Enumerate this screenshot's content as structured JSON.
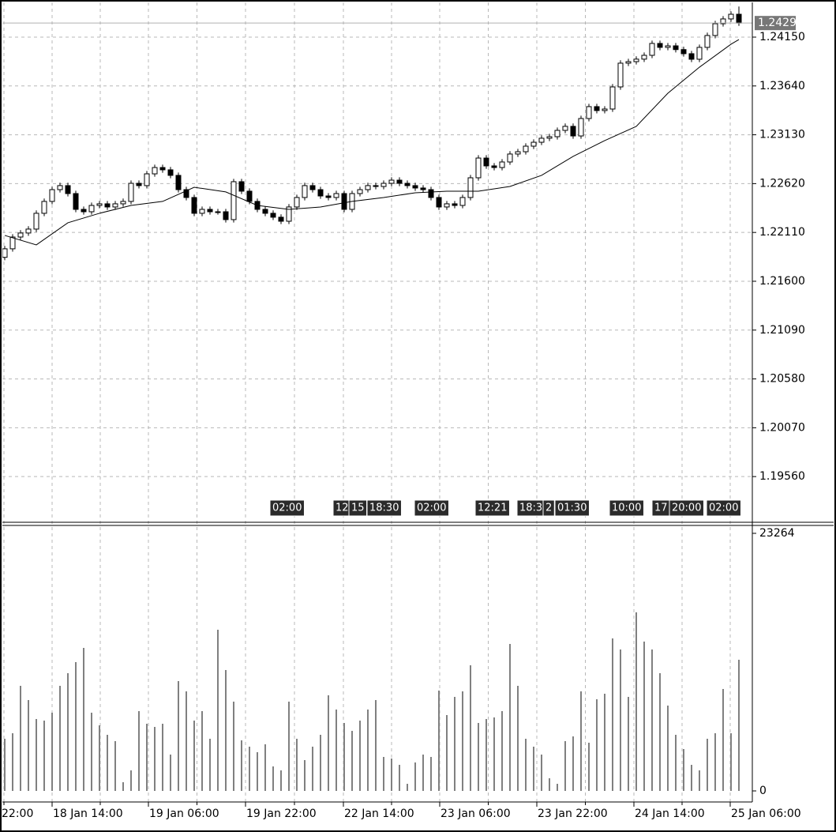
{
  "chart_data": [
    {
      "type": "candlestick",
      "open": [
        1.2185,
        1.21939,
        1.22062,
        1.22104,
        1.22145,
        1.2231,
        1.22434,
        1.22557,
        1.22599,
        1.22516,
        1.22351,
        1.22326,
        1.22392,
        1.22409,
        1.22376,
        1.22409,
        1.22434,
        1.22623,
        1.22599,
        1.22722,
        1.22788,
        1.22764,
        1.22706,
        1.22557,
        1.22475,
        1.2231,
        1.22351,
        1.22326,
        1.22326,
        1.22244,
        1.2264,
        1.22541,
        1.22434,
        1.22351,
        1.2231,
        1.22269,
        1.22227,
        1.22376,
        1.22475,
        1.22599,
        1.22557,
        1.22491,
        1.22475,
        1.22516,
        1.22351,
        1.22516,
        1.22557,
        1.22599,
        1.2259,
        1.22623,
        1.22656,
        1.22623,
        1.22599,
        1.22574,
        1.22557,
        1.22475,
        1.22376,
        1.22409,
        1.22392,
        1.22475,
        1.22681,
        1.22887,
        1.22805,
        1.22788,
        1.22846,
        1.22929,
        1.22953,
        1.23011,
        1.23052,
        1.23094,
        1.2311,
        1.23176,
        1.23218,
        1.23118,
        1.233,
        1.23424,
        1.23383,
        1.23399,
        1.2363,
        1.23878,
        1.23894,
        1.2392,
        1.2396,
        1.24084,
        1.24043,
        1.24059,
        1.2402,
        1.23977,
        1.23919,
        1.24043,
        1.24167,
        1.2429,
        1.2434,
        1.24389
      ],
      "high": [
        1.21969,
        1.22092,
        1.22134,
        1.22175,
        1.2234,
        1.22464,
        1.22587,
        1.22629,
        1.22629,
        1.22546,
        1.22381,
        1.22422,
        1.22439,
        1.22439,
        1.22439,
        1.22464,
        1.22653,
        1.22653,
        1.22752,
        1.22818,
        1.22818,
        1.22794,
        1.22736,
        1.22587,
        1.22505,
        1.22381,
        1.22381,
        1.22356,
        1.22356,
        1.2267,
        1.2267,
        1.22571,
        1.22464,
        1.22381,
        1.2234,
        1.22299,
        1.22406,
        1.22505,
        1.22629,
        1.22629,
        1.22587,
        1.22521,
        1.22546,
        1.22546,
        1.22546,
        1.22587,
        1.22629,
        1.22629,
        1.22653,
        1.22686,
        1.22686,
        1.22653,
        1.22629,
        1.22604,
        1.22587,
        1.22505,
        1.22439,
        1.22439,
        1.22505,
        1.22711,
        1.22917,
        1.22917,
        1.22835,
        1.22876,
        1.22959,
        1.22983,
        1.23041,
        1.23082,
        1.23124,
        1.2314,
        1.23206,
        1.23248,
        1.23248,
        1.2333,
        1.23454,
        1.23454,
        1.23429,
        1.2366,
        1.23908,
        1.23924,
        1.2395,
        1.2399,
        1.24114,
        1.24114,
        1.24089,
        1.24089,
        1.2405,
        1.24007,
        1.24073,
        1.24197,
        1.2432,
        1.2437,
        1.24419,
        1.2447
      ],
      "low": [
        1.2182,
        1.21909,
        1.22032,
        1.22074,
        1.22115,
        1.2228,
        1.22404,
        1.22527,
        1.22486,
        1.22321,
        1.22296,
        1.22296,
        1.22362,
        1.22346,
        1.22346,
        1.22379,
        1.22404,
        1.22569,
        1.22569,
        1.22692,
        1.22734,
        1.22676,
        1.22527,
        1.22445,
        1.2228,
        1.2228,
        1.22296,
        1.22296,
        1.22214,
        1.22214,
        1.22511,
        1.22404,
        1.22321,
        1.2228,
        1.22239,
        1.22197,
        1.22197,
        1.22346,
        1.22445,
        1.22527,
        1.22461,
        1.22445,
        1.22445,
        1.22321,
        1.22321,
        1.22486,
        1.22527,
        1.2256,
        1.2256,
        1.22593,
        1.22593,
        1.22569,
        1.22544,
        1.22527,
        1.22445,
        1.22346,
        1.22346,
        1.22362,
        1.22362,
        1.22445,
        1.22651,
        1.22775,
        1.22758,
        1.22758,
        1.22816,
        1.22899,
        1.22923,
        1.22981,
        1.23022,
        1.23064,
        1.2308,
        1.23146,
        1.23088,
        1.23088,
        1.2327,
        1.23353,
        1.23353,
        1.23369,
        1.236,
        1.23848,
        1.23864,
        1.2389,
        1.2393,
        1.24013,
        1.24013,
        1.2399,
        1.23947,
        1.23889,
        1.23889,
        1.24013,
        1.24137,
        1.2426,
        1.2431,
        1.24267
      ],
      "close": [
        1.21939,
        1.22062,
        1.22104,
        1.22145,
        1.2231,
        1.22434,
        1.22557,
        1.22599,
        1.22516,
        1.22351,
        1.22326,
        1.22392,
        1.22409,
        1.22376,
        1.22409,
        1.22434,
        1.22623,
        1.22599,
        1.22722,
        1.22788,
        1.22764,
        1.22706,
        1.22557,
        1.22475,
        1.2231,
        1.22351,
        1.22326,
        1.22326,
        1.22244,
        1.2264,
        1.22541,
        1.22434,
        1.22351,
        1.2231,
        1.22269,
        1.22227,
        1.22376,
        1.22475,
        1.22599,
        1.22557,
        1.22491,
        1.22475,
        1.22516,
        1.22351,
        1.22516,
        1.22557,
        1.22599,
        1.2259,
        1.22623,
        1.22656,
        1.22623,
        1.22599,
        1.22574,
        1.22557,
        1.22475,
        1.22376,
        1.22409,
        1.22392,
        1.22475,
        1.22681,
        1.22887,
        1.22805,
        1.22788,
        1.22846,
        1.22929,
        1.22953,
        1.23011,
        1.23052,
        1.23094,
        1.2311,
        1.23176,
        1.23218,
        1.23118,
        1.233,
        1.23424,
        1.23383,
        1.23399,
        1.2363,
        1.23878,
        1.23894,
        1.2392,
        1.2396,
        1.24084,
        1.24043,
        1.24059,
        1.2402,
        1.23977,
        1.23919,
        1.24043,
        1.24167,
        1.2429,
        1.2434,
        1.24389,
        1.24297
      ],
      "color_up": "#ffffff",
      "color_down": "#000000",
      "ma": {
        "color": "#000000",
        "x": [
          0,
          4,
          8,
          12,
          16,
          20,
          24,
          28,
          32,
          36,
          40,
          44,
          48,
          52,
          56,
          60,
          64,
          68,
          72,
          76,
          80,
          84,
          88,
          92,
          93
        ],
        "values": [
          1.22079,
          1.2198,
          1.22211,
          1.2231,
          1.22392,
          1.22434,
          1.22582,
          1.22533,
          1.22392,
          1.22351,
          1.22376,
          1.22434,
          1.22475,
          1.22524,
          1.22541,
          1.22541,
          1.2259,
          1.22706,
          1.22904,
          1.23069,
          1.23218,
          1.23564,
          1.23836,
          1.24076,
          1.24125
        ]
      },
      "last_price": 1.24297,
      "xlim": [
        -0.3,
        94.7
      ],
      "ylim": [
        1.19091,
        1.24513
      ],
      "yticks": [
        {
          "value": 1.2415,
          "label": "1.24150"
        },
        {
          "value": 1.2364,
          "label": "1.23640"
        },
        {
          "value": 1.2313,
          "label": "1.23130"
        },
        {
          "value": 1.2262,
          "label": "1.22620"
        },
        {
          "value": 1.2211,
          "label": "1.22110"
        },
        {
          "value": 1.216,
          "label": "1.21600"
        },
        {
          "value": 1.2109,
          "label": "1.21090"
        },
        {
          "value": 1.2058,
          "label": "1.20580"
        },
        {
          "value": 1.2007,
          "label": "1.20070"
        },
        {
          "value": 1.1956,
          "label": "1.19560"
        }
      ],
      "xticks": [
        {
          "value": -6.2,
          "label": "22:00"
        },
        {
          "value": 6.0,
          "label": "18 Jan 14:00"
        },
        {
          "value": 18.2,
          "label": "19 Jan 06:00"
        },
        {
          "value": 30.5,
          "label": "19 Jan 22:00"
        },
        {
          "value": 42.9,
          "label": "22 Jan 14:00"
        },
        {
          "value": 55.1,
          "label": "23 Jan 06:00"
        },
        {
          "value": 67.4,
          "label": "23 Jan 22:00"
        },
        {
          "value": 79.7,
          "label": "24 Jan 14:00"
        },
        {
          "value": 91.9,
          "label": "25 Jan 06:00"
        }
      ],
      "events": [
        {
          "x": 33.6,
          "label": "02:00"
        },
        {
          "x": 41.6,
          "label": "12"
        },
        {
          "x": 43.6,
          "label": "15"
        },
        {
          "x": 45.9,
          "label": "18:30"
        },
        {
          "x": 51.9,
          "label": "02:00"
        },
        {
          "x": 59.6,
          "label": "12:21"
        },
        {
          "x": 64.9,
          "label": "18:3"
        },
        {
          "x": 68.2,
          "label": "2"
        },
        {
          "x": 69.7,
          "label": "01:30"
        },
        {
          "x": 76.6,
          "label": "10:00"
        },
        {
          "x": 82.0,
          "label": "17"
        },
        {
          "x": 84.2,
          "label": "20:00"
        },
        {
          "x": 88.9,
          "label": "02:00"
        }
      ],
      "grid": true
    },
    {
      "type": "bar",
      "color": "#808080",
      "values": [
        4710,
        5209,
        9491,
        8206,
        6494,
        6351,
        7065,
        9491,
        10633,
        11632,
        12916,
        7065,
        5923,
        5067,
        4496,
        785,
        1855,
        7207,
        6066,
        5780,
        6066,
        3283,
        9919,
        8991,
        6351,
        7207,
        4710,
        14557,
        10918,
        8064,
        4567,
        3996,
        3497,
        4210,
        2212,
        1855,
        8064,
        4710,
        2783,
        3996,
        5067,
        8635,
        7350,
        6137,
        5423,
        6351,
        7350,
        8206,
        3068,
        2926,
        2355,
        642,
        2569,
        3283,
        3068,
        9063,
        6851,
        8492,
        8991,
        11346,
        6137,
        6494,
        6636,
        7207,
        13273,
        9491,
        4710,
        3996,
        3283,
        1142,
        642,
        4496,
        4924,
        8991,
        4353,
        8278,
        8777,
        13772,
        12773,
        8492,
        16127,
        13487,
        12773,
        10633,
        7707,
        5067,
        3782,
        2355,
        1855,
        4710,
        5209,
        9205,
        5209,
        11846
      ],
      "ylim": [
        0,
        23264
      ],
      "yticks": [
        0,
        23264
      ],
      "grid": true
    }
  ]
}
